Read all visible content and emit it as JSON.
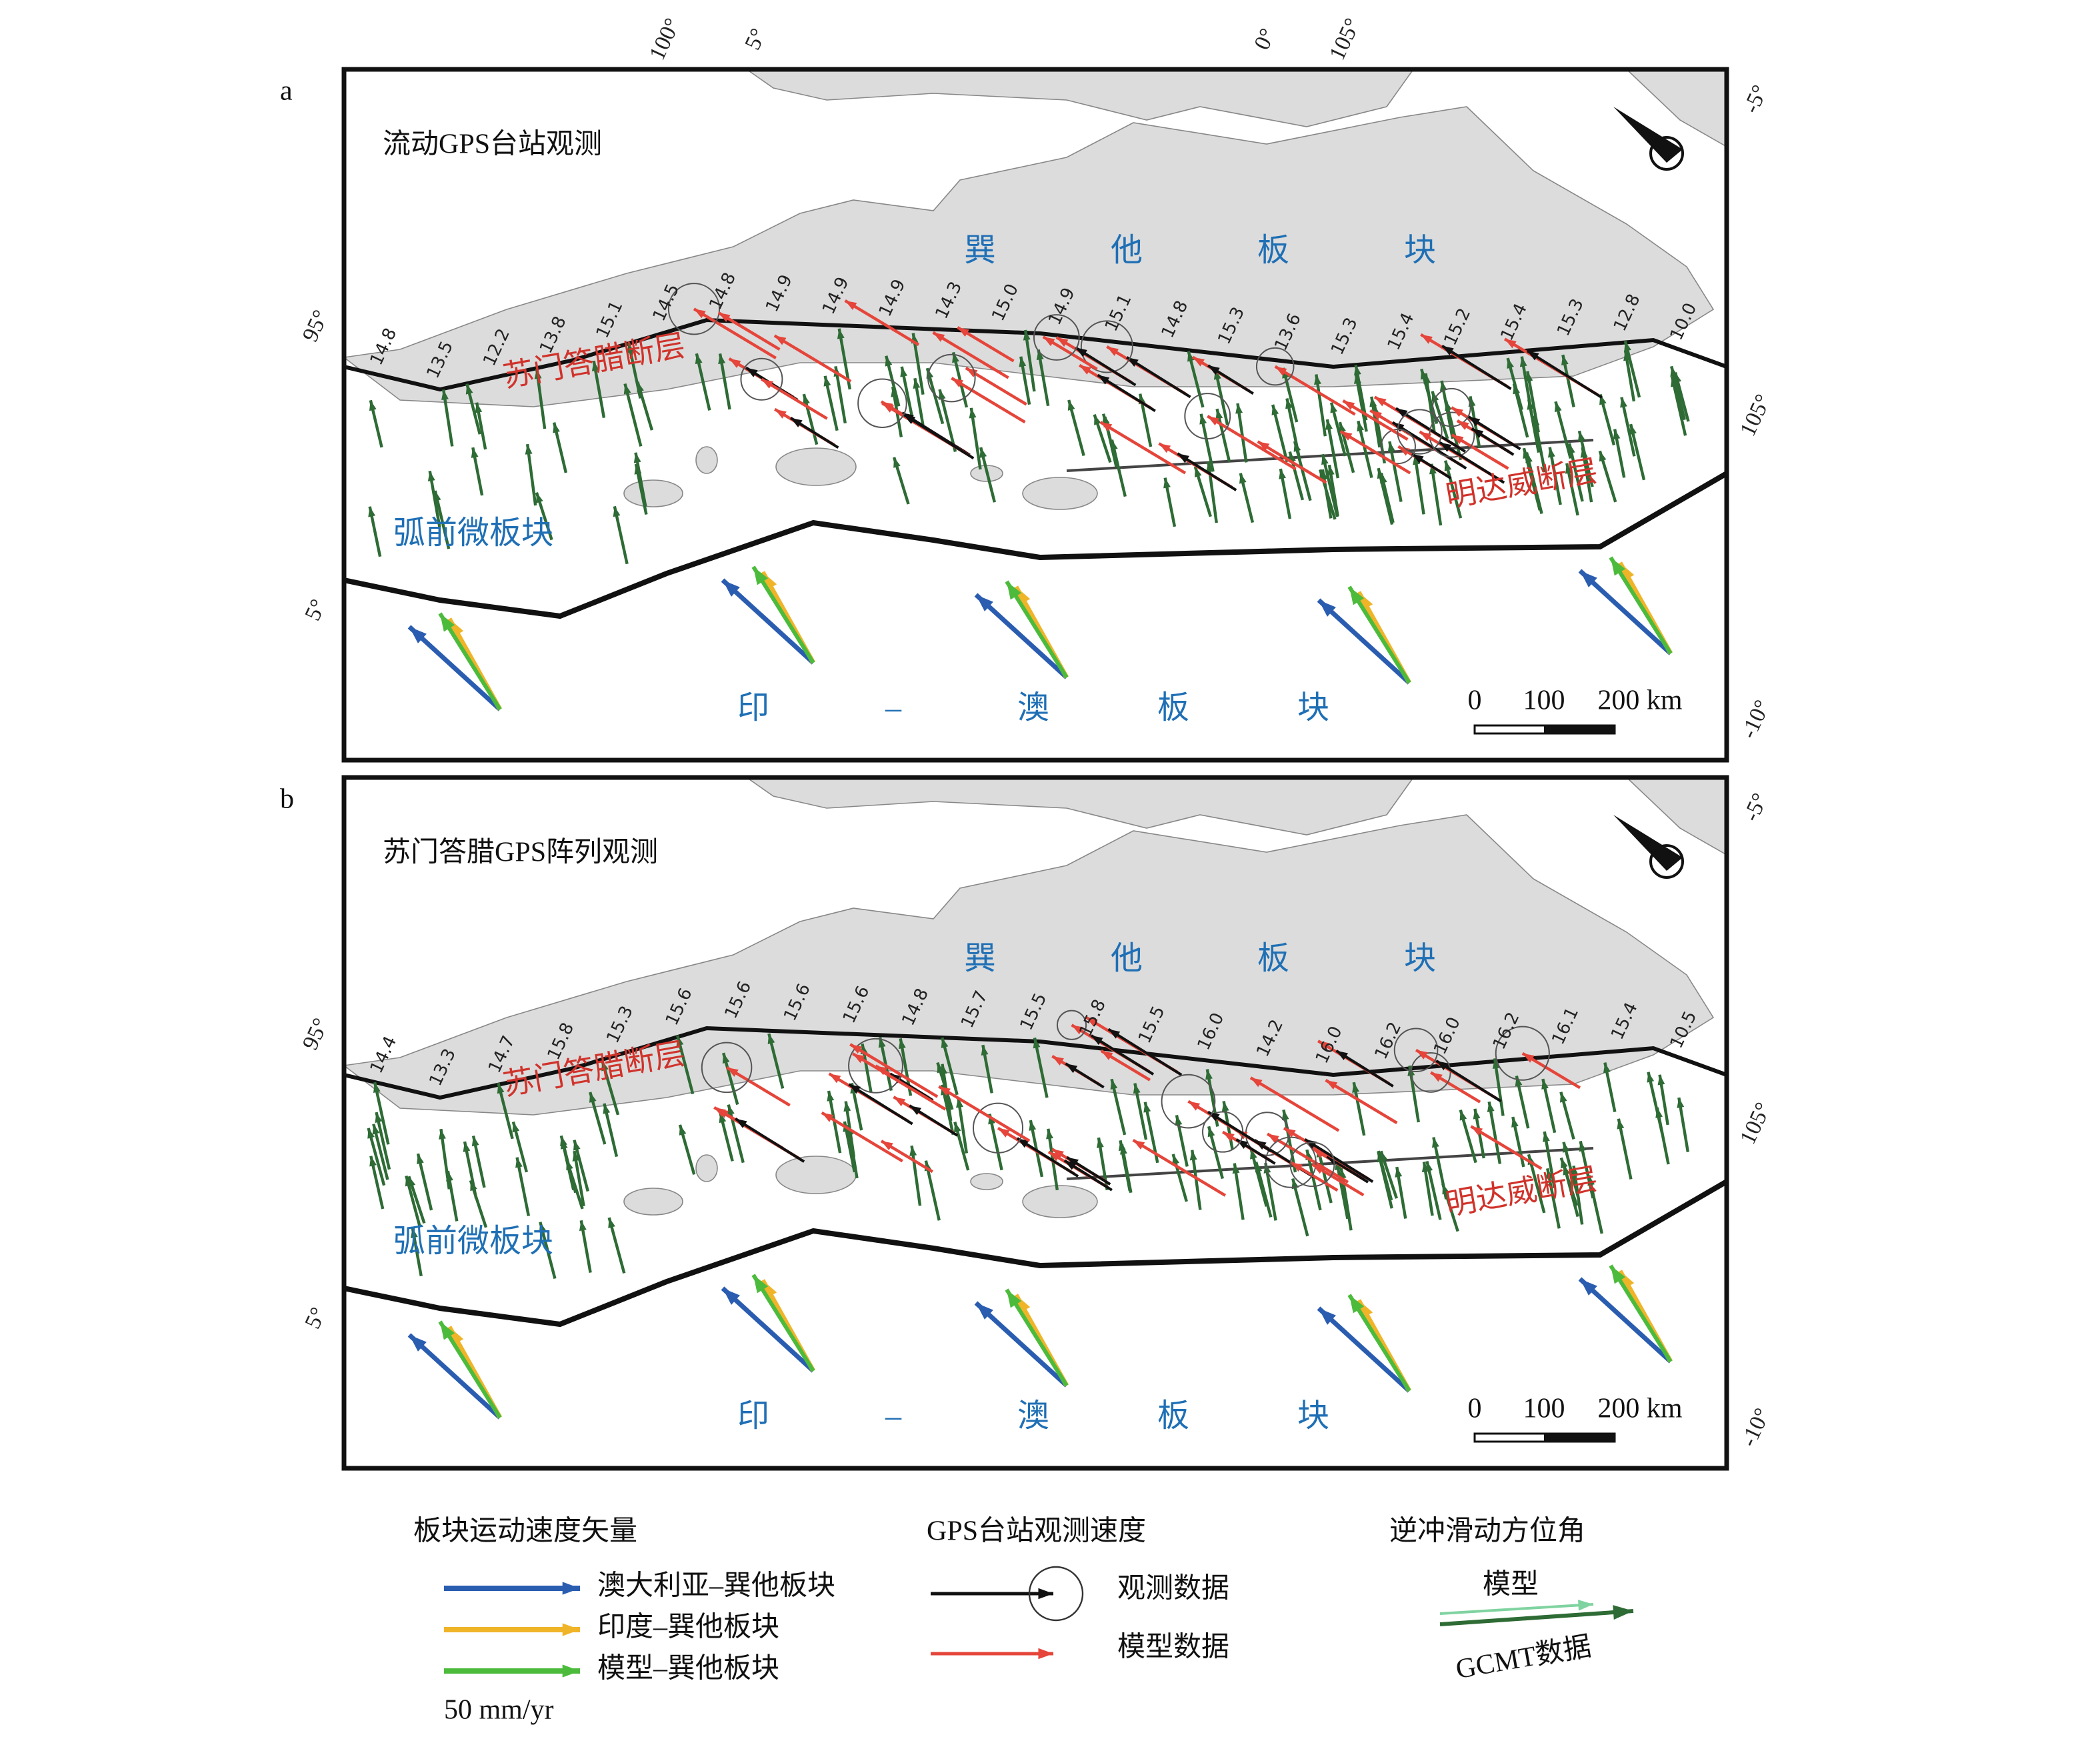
{
  "panels": [
    {
      "label": "a",
      "title": "流动GPS台站观测",
      "plate_sunda": [
        "巽",
        "他",
        "板",
        "块"
      ],
      "sumatran_fault": "苏门答腊断层",
      "mentawai_fault": "明达威断层",
      "forearc": "弧前微板块",
      "plate_indo": [
        "印",
        "–",
        "澳",
        "板",
        "块"
      ],
      "rates": [
        "14.8",
        "13.5",
        "12.2",
        "13.8",
        "15.1",
        "14.5",
        "14.8",
        "14.9",
        "14.9",
        "14.9",
        "14.3",
        "15.0",
        "14.9",
        "15.1",
        "14.8",
        "15.3",
        "13.6",
        "15.3",
        "15.4",
        "15.2",
        "15.4",
        "15.3",
        "12.8",
        "10.0"
      ],
      "top_labels": [
        "100°",
        "5°",
        "0°",
        "105°"
      ],
      "left_labels": [
        "95°",
        "5°"
      ],
      "right_labels": [
        "-5°",
        "105°",
        "-10°"
      ],
      "scale": [
        "0",
        "100",
        "200 km"
      ]
    },
    {
      "label": "b",
      "title": "苏门答腊GPS阵列观测",
      "plate_sunda": [
        "巽",
        "他",
        "板",
        "块"
      ],
      "sumatran_fault": "苏门答腊断层",
      "mentawai_fault": "明达威断层",
      "forearc": "弧前微板块",
      "plate_indo": [
        "印",
        "–",
        "澳",
        "板",
        "块"
      ],
      "rates": [
        "14.4",
        "13.3",
        "14.7",
        "15.8",
        "15.3",
        "15.6",
        "15.6",
        "15.6",
        "15.6",
        "14.8",
        "15.7",
        "15.5",
        "15.8",
        "15.5",
        "16.0",
        "14.2",
        "16.0",
        "16.2",
        "16.0",
        "16.2",
        "16.1",
        "15.4",
        "10.5"
      ],
      "left_labels": [
        "95°",
        "5°"
      ],
      "right_labels": [
        "-5°",
        "105°",
        "-10°"
      ],
      "scale": [
        "0",
        "100",
        "200 km"
      ]
    }
  ],
  "legend": {
    "plate_vectors": {
      "title": "板块运动速度矢量",
      "items": [
        "澳大利亚–巽他板块",
        "印度–巽他板块",
        "模型–巽他板块"
      ],
      "scale": "50 mm/yr"
    },
    "gps": {
      "title": "GPS台站观测速度",
      "items": [
        "观测数据",
        "模型数据"
      ]
    },
    "slip": {
      "title": "逆冲滑动方位角",
      "items": [
        "模型",
        "GCMT数据"
      ]
    }
  }
}
